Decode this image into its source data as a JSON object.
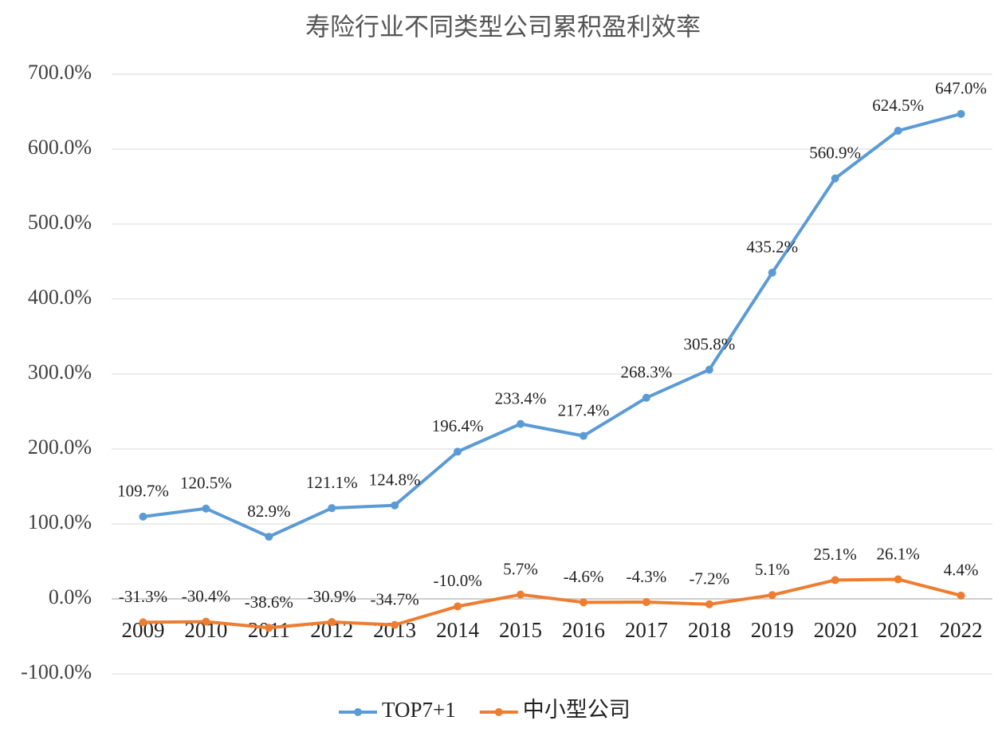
{
  "chart_data": {
    "type": "line",
    "title": "寿险行业不同类型公司累积盈利效率",
    "categories": [
      "2009",
      "2010",
      "2011",
      "2012",
      "2013",
      "2014",
      "2015",
      "2016",
      "2017",
      "2018",
      "2019",
      "2020",
      "2021",
      "2022"
    ],
    "series": [
      {
        "name": "TOP7+1",
        "color": "#5b9bd5",
        "values": [
          109.7,
          120.5,
          82.9,
          121.1,
          124.8,
          196.4,
          233.4,
          217.4,
          268.3,
          305.8,
          435.2,
          560.9,
          624.5,
          647.0
        ],
        "value_labels": [
          "109.7%",
          "120.5%",
          "82.9%",
          "121.1%",
          "124.8%",
          "196.4%",
          "233.4%",
          "217.4%",
          "268.3%",
          "305.8%",
          "435.2%",
          "560.9%",
          "624.5%",
          "647.0%"
        ]
      },
      {
        "name": "中小型公司",
        "color": "#ed7d31",
        "values": [
          -31.3,
          -30.4,
          -38.6,
          -30.9,
          -34.7,
          -10.0,
          5.7,
          -4.6,
          -4.3,
          -7.2,
          5.1,
          25.1,
          26.1,
          4.4
        ],
        "value_labels": [
          "-31.3%",
          "-30.4%",
          "-38.6%",
          "-30.9%",
          "-34.7%",
          "-10.0%",
          "5.7%",
          "-4.6%",
          "-4.3%",
          "-7.2%",
          "5.1%",
          "25.1%",
          "26.1%",
          "4.4%"
        ]
      }
    ],
    "ylim": [
      -100,
      700
    ],
    "yticks": [
      {
        "value": -100,
        "label": "-100.0%"
      },
      {
        "value": 0,
        "label": "0.0%"
      },
      {
        "value": 100,
        "label": "100.0%"
      },
      {
        "value": 200,
        "label": "200.0%"
      },
      {
        "value": 300,
        "label": "300.0%"
      },
      {
        "value": 400,
        "label": "400.0%"
      },
      {
        "value": 500,
        "label": "500.0%"
      },
      {
        "value": 600,
        "label": "600.0%"
      },
      {
        "value": 700,
        "label": "700.0%"
      }
    ],
    "grid": true,
    "legend": "bottom"
  }
}
